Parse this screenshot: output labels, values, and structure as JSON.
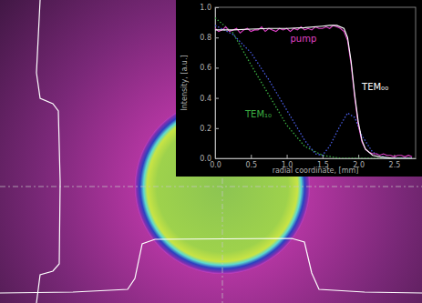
{
  "chart_data": {
    "type": "line",
    "x_label": "radial coordinate, [mm]",
    "y_label": "Intensity, [a.u.]",
    "xlim": [
      0,
      2.8
    ],
    "ylim": [
      0,
      1
    ],
    "xticks": [
      {
        "value": 0,
        "label": "0.0"
      },
      {
        "value": 0.5,
        "label": "0.5"
      },
      {
        "value": 1,
        "label": "1.0"
      },
      {
        "value": 1.5,
        "label": "1.5"
      },
      {
        "value": 2,
        "label": "2.0"
      },
      {
        "value": 2.5,
        "label": "2.5"
      }
    ],
    "yticks": [
      {
        "value": 0,
        "label": "0.0"
      },
      {
        "value": 0.2,
        "label": "0.2"
      },
      {
        "value": 0.4,
        "label": "0.4"
      },
      {
        "value": 0.6,
        "label": "0.6"
      },
      {
        "value": 0.8,
        "label": "0.8"
      },
      {
        "value": 1,
        "label": "1.0"
      }
    ],
    "grid": false,
    "series": [
      {
        "color": "#3cb043",
        "line_style": "dotted",
        "x": [
          0,
          0.25,
          0.5,
          0.75,
          1.0,
          1.25,
          1.5,
          1.75,
          2.0,
          2.25,
          2.5,
          2.75
        ],
        "values": [
          0.93,
          0.83,
          0.62,
          0.42,
          0.22,
          0.08,
          0.02,
          0.0,
          0.0,
          0.0,
          0.0,
          0.0
        ]
      },
      {
        "color": "#4a5ee8",
        "line_style": "dotted",
        "x": [
          0,
          0.25,
          0.5,
          0.75,
          1.0,
          1.25,
          1.4,
          1.5,
          1.6,
          1.75,
          1.85,
          1.95,
          2.05,
          2.2,
          2.4,
          2.75
        ],
        "values": [
          0.88,
          0.82,
          0.7,
          0.52,
          0.32,
          0.12,
          0.03,
          0.02,
          0.08,
          0.22,
          0.3,
          0.27,
          0.15,
          0.04,
          0.0,
          0.0
        ]
      },
      {
        "color": "#e040c8",
        "line_style": "solid",
        "x": [
          0,
          0.05,
          0.1,
          0.15,
          0.2,
          0.25,
          0.3,
          0.35,
          0.4,
          0.45,
          0.5,
          0.55,
          0.6,
          0.65,
          0.7,
          0.75,
          0.8,
          0.85,
          0.9,
          0.95,
          1.0,
          1.05,
          1.1,
          1.15,
          1.2,
          1.25,
          1.3,
          1.35,
          1.4,
          1.45,
          1.5,
          1.55,
          1.6,
          1.65,
          1.7,
          1.75,
          1.8,
          1.85,
          1.9,
          1.95,
          2.0,
          2.05,
          2.1,
          2.15,
          2.2,
          2.25,
          2.3,
          2.35,
          2.4,
          2.45,
          2.5,
          2.55,
          2.6,
          2.65,
          2.7,
          2.75
        ],
        "values": [
          0.86,
          0.84,
          0.85,
          0.87,
          0.84,
          0.85,
          0.86,
          0.83,
          0.85,
          0.86,
          0.84,
          0.85,
          0.85,
          0.87,
          0.84,
          0.86,
          0.85,
          0.84,
          0.86,
          0.85,
          0.86,
          0.84,
          0.86,
          0.85,
          0.87,
          0.85,
          0.86,
          0.85,
          0.87,
          0.86,
          0.86,
          0.87,
          0.86,
          0.88,
          0.87,
          0.86,
          0.84,
          0.78,
          0.62,
          0.4,
          0.22,
          0.11,
          0.06,
          0.04,
          0.03,
          0.03,
          0.02,
          0.03,
          0.02,
          0.02,
          0.01,
          0.02,
          0.02,
          0.01,
          0.02,
          0.01
        ]
      },
      {
        "color": "#ffffff",
        "line_style": "solid",
        "x": [
          0,
          0.25,
          0.5,
          0.75,
          1.0,
          1.25,
          1.5,
          1.6,
          1.7,
          1.8,
          1.85,
          1.9,
          1.95,
          2.0,
          2.05,
          2.1,
          2.2,
          2.3,
          2.5,
          2.75
        ],
        "values": [
          0.85,
          0.85,
          0.855,
          0.86,
          0.86,
          0.865,
          0.875,
          0.88,
          0.88,
          0.86,
          0.8,
          0.64,
          0.42,
          0.24,
          0.12,
          0.06,
          0.02,
          0.01,
          0.0,
          0.0
        ]
      }
    ],
    "annotations": [
      {
        "text": "pump",
        "x": 1.05,
        "y": 0.77,
        "color": "#e040c8"
      },
      {
        "text": "TEM₁₀",
        "x": 0.42,
        "y": 0.27,
        "color": "#3cb043"
      },
      {
        "text": "TEM₀₀",
        "x": 2.05,
        "y": 0.45,
        "color": "#ffffff"
      }
    ]
  }
}
